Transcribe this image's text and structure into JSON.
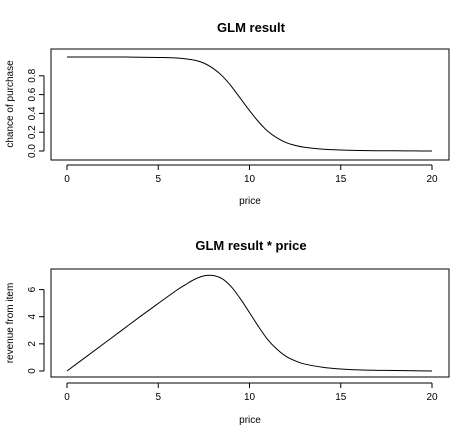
{
  "chart_data": [
    {
      "type": "line",
      "title": "GLM result",
      "xlabel": "price",
      "ylabel": "chance of purchase",
      "xlim": [
        0,
        20
      ],
      "ylim": [
        0,
        1
      ],
      "xticks": [
        "0",
        "5",
        "10",
        "15",
        "20"
      ],
      "yticks": [
        "0.0",
        "0.2",
        "0.4",
        "0.6",
        "0.8"
      ],
      "grid": false,
      "series": [
        {
          "x": [
            0,
            1,
            2,
            3,
            4,
            5,
            6,
            6.5,
            7,
            7.5,
            8,
            8.5,
            9,
            9.5,
            10,
            10.5,
            11,
            11.5,
            12,
            12.5,
            13,
            14,
            15,
            16,
            17,
            18,
            19,
            20
          ],
          "y": [
            1.0,
            1.0,
            1.0,
            1.0,
            0.998,
            0.995,
            0.99,
            0.98,
            0.965,
            0.935,
            0.88,
            0.8,
            0.69,
            0.56,
            0.43,
            0.31,
            0.21,
            0.14,
            0.09,
            0.06,
            0.04,
            0.02,
            0.01,
            0.005,
            0.003,
            0.002,
            0.001,
            0.0
          ]
        }
      ]
    },
    {
      "type": "line",
      "title": "GLM result * price",
      "xlabel": "price",
      "ylabel": "revenue from item",
      "xlim": [
        0,
        20
      ],
      "ylim": [
        0,
        7
      ],
      "xticks": [
        "0",
        "5",
        "10",
        "15",
        "20"
      ],
      "yticks": [
        "0",
        "2",
        "4",
        "6"
      ],
      "grid": false,
      "series": [
        {
          "x": [
            0,
            1,
            2,
            3,
            4,
            5,
            6,
            6.5,
            7,
            7.5,
            8,
            8.5,
            9,
            9.5,
            10,
            10.5,
            11,
            11.5,
            12,
            12.5,
            13,
            14,
            15,
            16,
            17,
            18,
            19,
            20
          ],
          "y": [
            0.0,
            1.0,
            2.0,
            3.0,
            4.0,
            4.98,
            5.94,
            6.37,
            6.76,
            7.01,
            7.04,
            6.8,
            6.21,
            5.32,
            4.3,
            3.26,
            2.31,
            1.61,
            1.08,
            0.75,
            0.52,
            0.28,
            0.15,
            0.08,
            0.05,
            0.036,
            0.019,
            0.0
          ]
        }
      ]
    }
  ]
}
